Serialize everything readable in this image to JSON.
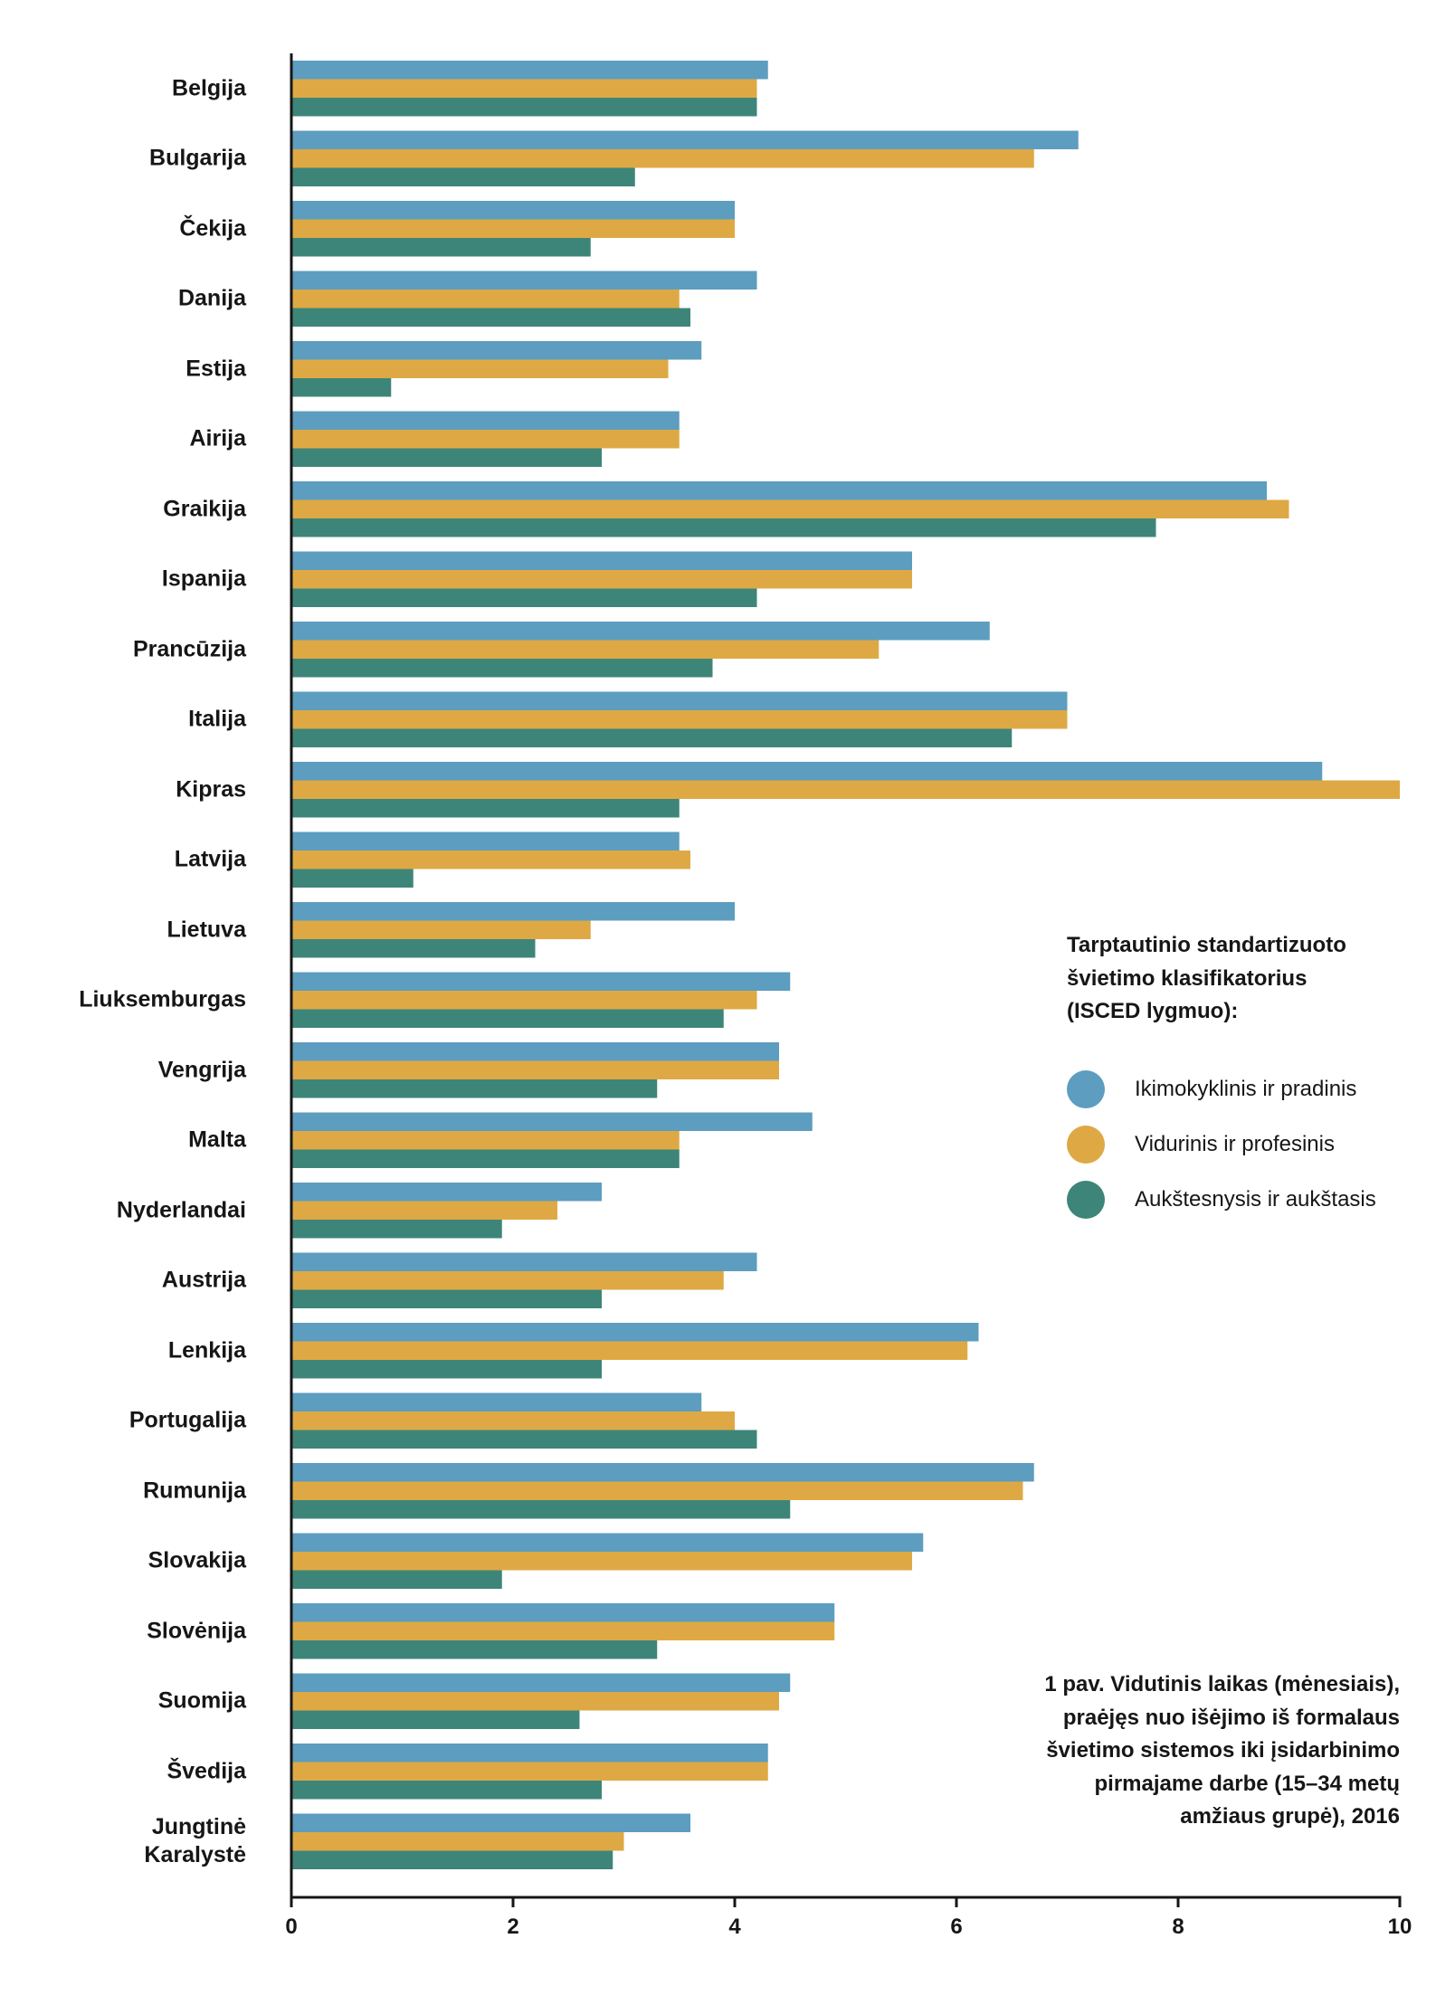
{
  "chart_data": {
    "type": "bar",
    "legend_position": "right",
    "title_lines": [
      "1 pav. Vidutinis laikas (mėnesiais),",
      "praėjęs nuo išėjimo iš formalaus",
      "švietimo sistemos iki įsidarbinimo",
      "pirmajame darbe (15–34 metų",
      "amžiaus grupė), 2016"
    ],
    "legend_title_lines": [
      "Tarptautinio standartizuoto",
      "švietimo klasifikatorius",
      "(ISCED lygmuo):"
    ],
    "xlabel": "",
    "ylabel": "",
    "xlim": [
      0,
      10
    ],
    "x_ticks": [
      0,
      2,
      4,
      6,
      8,
      10
    ],
    "grid": false,
    "categories": [
      "Belgija",
      "Bulgarija",
      "Čekija",
      "Danija",
      "Estija",
      "Airija",
      "Graikija",
      "Ispanija",
      "Prancūzija",
      "Italija",
      "Kipras",
      "Latvija",
      "Lietuva",
      "Liuksemburgas",
      "Vengrija",
      "Malta",
      "Nyderlandai",
      "Austrija",
      "Lenkija",
      "Portugalija",
      "Rumunija",
      "Slovakija",
      "Slovėnija",
      "Suomija",
      "Švedija",
      "Jungtinė Karalystė"
    ],
    "series": [
      {
        "name": "Ikimokyklinis ir pradinis",
        "color": "#5d9dbf",
        "values": [
          4.3,
          7.1,
          4.0,
          4.2,
          3.7,
          3.5,
          8.8,
          5.6,
          6.3,
          7.0,
          9.3,
          3.5,
          4.0,
          4.5,
          4.4,
          4.7,
          2.8,
          4.2,
          6.2,
          3.7,
          6.7,
          5.7,
          4.9,
          4.5,
          4.3,
          3.6
        ]
      },
      {
        "name": "Vidurinis ir profesinis",
        "color": "#dea944",
        "values": [
          4.2,
          6.7,
          4.0,
          3.5,
          3.4,
          3.5,
          9.0,
          5.6,
          5.3,
          7.0,
          10.0,
          3.6,
          2.7,
          4.2,
          4.4,
          3.5,
          2.4,
          3.9,
          6.1,
          4.0,
          6.6,
          5.6,
          4.9,
          4.4,
          4.3,
          3.0
        ]
      },
      {
        "name": "Aukštesnysis ir aukštasis",
        "color": "#3e8579",
        "values": [
          4.2,
          3.1,
          2.7,
          3.6,
          0.9,
          2.8,
          7.8,
          4.2,
          3.8,
          6.5,
          3.5,
          1.1,
          2.2,
          3.9,
          3.3,
          3.5,
          1.9,
          2.8,
          2.8,
          4.2,
          4.5,
          1.9,
          3.3,
          2.6,
          2.8,
          2.9
        ]
      }
    ]
  }
}
